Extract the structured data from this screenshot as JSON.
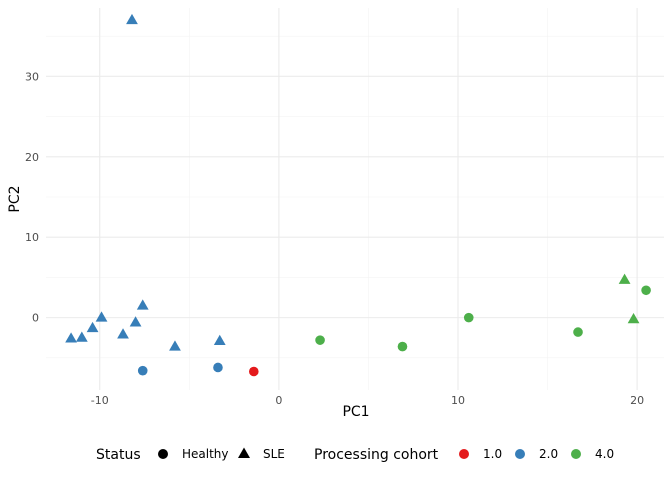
{
  "chart_data": {
    "type": "scatter",
    "xlabel": "PC1",
    "ylabel": "PC2",
    "xlim": [
      -13,
      21.5
    ],
    "ylim": [
      -9,
      38.5
    ],
    "x_ticks": [
      -10,
      0,
      10,
      20
    ],
    "x_tick_labels": [
      "-10",
      "0",
      "10",
      "20"
    ],
    "y_ticks": [
      0,
      10,
      20,
      30
    ],
    "y_tick_labels": [
      "0",
      "10",
      "20",
      "30"
    ],
    "grid": true,
    "legend_position": "bottom",
    "legends": {
      "shape": {
        "title": "Status",
        "entries": [
          {
            "label": "Healthy",
            "shape": "circle"
          },
          {
            "label": "SLE",
            "shape": "triangle"
          }
        ]
      },
      "color": {
        "title": "Processing cohort",
        "entries": [
          {
            "label": "1.0",
            "color": "#e41a1c"
          },
          {
            "label": "2.0",
            "color": "#377eb8"
          },
          {
            "label": "4.0",
            "color": "#4daf4a"
          }
        ]
      }
    },
    "points": [
      {
        "x": -8.2,
        "y": 37.0,
        "status": "SLE",
        "cohort": "2.0"
      },
      {
        "x": -11.6,
        "y": -2.6,
        "status": "SLE",
        "cohort": "2.0"
      },
      {
        "x": -11.0,
        "y": -2.5,
        "status": "SLE",
        "cohort": "2.0"
      },
      {
        "x": -10.4,
        "y": -1.3,
        "status": "SLE",
        "cohort": "2.0"
      },
      {
        "x": -9.9,
        "y": 0.0,
        "status": "SLE",
        "cohort": "2.0"
      },
      {
        "x": -8.7,
        "y": -2.1,
        "status": "SLE",
        "cohort": "2.0"
      },
      {
        "x": -8.0,
        "y": -0.6,
        "status": "SLE",
        "cohort": "2.0"
      },
      {
        "x": -7.6,
        "y": 1.5,
        "status": "SLE",
        "cohort": "2.0"
      },
      {
        "x": -5.8,
        "y": -3.6,
        "status": "SLE",
        "cohort": "2.0"
      },
      {
        "x": -3.3,
        "y": -2.9,
        "status": "SLE",
        "cohort": "2.0"
      },
      {
        "x": -7.6,
        "y": -6.6,
        "status": "Healthy",
        "cohort": "2.0"
      },
      {
        "x": -3.4,
        "y": -6.2,
        "status": "Healthy",
        "cohort": "2.0"
      },
      {
        "x": -1.4,
        "y": -6.7,
        "status": "Healthy",
        "cohort": "1.0"
      },
      {
        "x": 2.3,
        "y": -2.8,
        "status": "Healthy",
        "cohort": "4.0"
      },
      {
        "x": 6.9,
        "y": -3.6,
        "status": "Healthy",
        "cohort": "4.0"
      },
      {
        "x": 10.6,
        "y": 0.0,
        "status": "Healthy",
        "cohort": "4.0"
      },
      {
        "x": 16.7,
        "y": -1.8,
        "status": "Healthy",
        "cohort": "4.0"
      },
      {
        "x": 19.3,
        "y": 4.7,
        "status": "SLE",
        "cohort": "4.0"
      },
      {
        "x": 19.8,
        "y": -0.2,
        "status": "SLE",
        "cohort": "4.0"
      },
      {
        "x": 20.5,
        "y": 3.4,
        "status": "Healthy",
        "cohort": "4.0"
      }
    ]
  }
}
